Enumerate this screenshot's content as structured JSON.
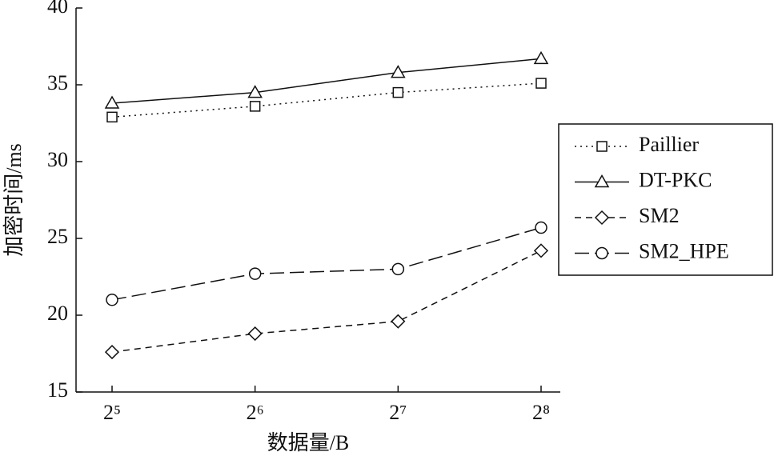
{
  "chart_data": {
    "type": "line",
    "x_label": "数据量/B",
    "y_label": "加密时间/ms",
    "categories": [
      "2⁵",
      "2⁶",
      "2⁷",
      "2⁸"
    ],
    "series": [
      {
        "name": "Paillier",
        "color": "#111111",
        "dash": "2 5",
        "marker": "square",
        "values": [
          32.9,
          33.6,
          34.5,
          35.1
        ]
      },
      {
        "name": "DT-PKC",
        "color": "#111111",
        "dash": "",
        "marker": "triangle",
        "values": [
          33.8,
          34.5,
          35.8,
          36.7
        ]
      },
      {
        "name": "SM2",
        "color": "#111111",
        "dash": "8 6",
        "marker": "diamond",
        "values": [
          17.6,
          18.8,
          19.6,
          24.2
        ]
      },
      {
        "name": "SM2_HPE",
        "color": "#111111",
        "dash": "18 7",
        "marker": "circle",
        "values": [
          21.0,
          22.7,
          23.0,
          25.7
        ]
      }
    ],
    "ylim": [
      15,
      40
    ],
    "yticks": [
      15,
      20,
      25,
      30,
      35,
      40
    ],
    "grid": false,
    "legend": "right"
  }
}
